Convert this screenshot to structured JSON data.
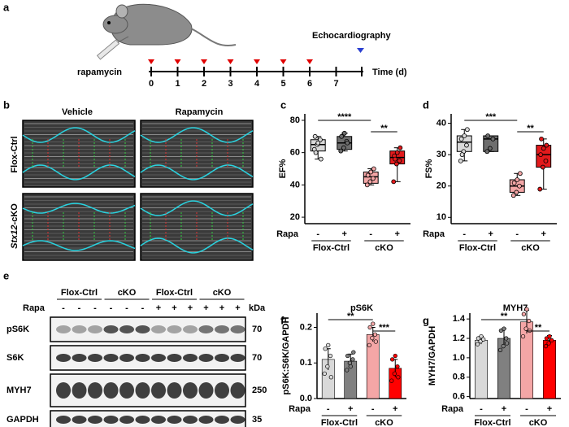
{
  "panel_labels": [
    "a",
    "b",
    "c",
    "d",
    "e",
    "f",
    "g"
  ],
  "timeline": {
    "drug": "rapamycin",
    "days": [
      "0",
      "1",
      "2",
      "3",
      "4",
      "5",
      "6",
      "7"
    ],
    "axis_label": "Time (d)",
    "event": "Echocardiography"
  },
  "echo": {
    "columns": [
      "Vehicle",
      "Rapamycin"
    ],
    "row1": "Flox-Ctrl",
    "row2_gene": "Stx12",
    "row2_suffix": "-cKO"
  },
  "blot": {
    "groups": [
      "Flox-Ctrl",
      "cKO",
      "Flox-Ctrl",
      "cKO"
    ],
    "treatment": "Rapa",
    "signs": [
      "-",
      "-",
      "-",
      "-",
      "-",
      "-",
      "+",
      "+",
      "+",
      "+",
      "+",
      "+"
    ],
    "unit": "kDa",
    "proteins": [
      {
        "name": "pS6K",
        "kda": 70
      },
      {
        "name": "S6K",
        "kda": 70
      },
      {
        "name": "MYH7",
        "kda": 250
      },
      {
        "name": "GAPDH",
        "kda": 35
      }
    ]
  },
  "chart_data": [
    {
      "type": "box",
      "ylabel": "EF%",
      "ylim": [
        16,
        84
      ],
      "yticks": [
        20,
        40,
        60,
        80
      ],
      "treatment": "Rapa",
      "treatment_levels": [
        "-",
        "+",
        "-",
        "+"
      ],
      "groups": [
        "Flox-Ctrl",
        "cKO"
      ],
      "significance": [
        "****",
        "**"
      ],
      "boxes": [
        {
          "color": "#d9d9d9",
          "min": 56,
          "q1": 61,
          "median": 65,
          "q3": 68,
          "max": 70,
          "points": [
            62,
            65,
            68,
            70,
            66,
            56,
            60
          ]
        },
        {
          "color": "#6e6e6e",
          "min": 61,
          "q1": 62,
          "median": 66,
          "q3": 70,
          "max": 72,
          "points": [
            61,
            63,
            67,
            70,
            72,
            66
          ]
        },
        {
          "color": "#f4a6a6",
          "min": 40,
          "q1": 41,
          "median": 45,
          "q3": 48,
          "max": 50,
          "points": [
            40,
            42,
            44,
            46,
            48,
            50
          ]
        },
        {
          "color": "#e31a1c",
          "min": 42,
          "q1": 53,
          "median": 57,
          "q3": 61,
          "max": 63,
          "points": [
            42,
            53,
            55,
            58,
            60,
            63,
            56
          ]
        }
      ]
    },
    {
      "type": "box",
      "ylabel": "FS%",
      "ylim": [
        8,
        43
      ],
      "yticks": [
        10,
        20,
        30,
        40
      ],
      "treatment": "Rapa",
      "treatment_levels": [
        "-",
        "+",
        "-",
        "+"
      ],
      "groups": [
        "Flox-Ctrl",
        "cKO"
      ],
      "significance": [
        "***",
        "**"
      ],
      "boxes": [
        {
          "color": "#d9d9d9",
          "min": 28,
          "q1": 31,
          "median": 34,
          "q3": 36,
          "max": 38,
          "points": [
            28,
            31,
            33,
            35,
            36,
            38,
            30
          ]
        },
        {
          "color": "#6e6e6e",
          "min": 31,
          "q1": 31,
          "median": 35,
          "q3": 36,
          "max": 36,
          "points": [
            31,
            32,
            35,
            36
          ]
        },
        {
          "color": "#f4a6a6",
          "min": 17,
          "q1": 18,
          "median": 20,
          "q3": 22,
          "max": 24,
          "points": [
            17,
            18,
            20,
            21,
            22,
            24
          ]
        },
        {
          "color": "#e31a1c",
          "min": 19,
          "q1": 26,
          "median": 30,
          "q3": 33,
          "max": 35,
          "points": [
            19,
            26,
            28,
            30,
            32,
            33,
            35
          ]
        }
      ]
    },
    {
      "type": "bar",
      "title": "pS6K",
      "ylabel": "pS6K:S6K/GAPDH",
      "ylim": [
        0,
        0.24
      ],
      "yticks": [
        {
          "value": 0,
          "label": "0.0"
        },
        0.1,
        0.2
      ],
      "treatment": "Rapa",
      "treatment_levels": [
        "-",
        "+",
        "-",
        "+"
      ],
      "groups": [
        "Flox-Ctrl",
        "cKO"
      ],
      "significance": [
        "**",
        "***"
      ],
      "colors": [
        "#d9d9d9",
        "#808080",
        "#f4a6a6",
        "#ff0000"
      ],
      "values": [
        0.11,
        0.105,
        0.18,
        0.085
      ],
      "errors": [
        0.03,
        0.02,
        0.02,
        0.025
      ],
      "points": [
        [
          0.07,
          0.09,
          0.12,
          0.14,
          0.15,
          0.06
        ],
        [
          0.08,
          0.1,
          0.11,
          0.12,
          0.09,
          0.13
        ],
        [
          0.15,
          0.17,
          0.18,
          0.2,
          0.21,
          0.16
        ],
        [
          0.05,
          0.07,
          0.09,
          0.11,
          0.12,
          0.06
        ]
      ]
    },
    {
      "type": "bar",
      "title": "MYH7",
      "ylabel": "MYH7/GAPDH",
      "ylim": [
        0.58,
        1.46
      ],
      "yticks": [
        0.6,
        0.8,
        {
          "value": 1,
          "label": "1.0"
        },
        1.2,
        1.4
      ],
      "treatment": "Rapa",
      "treatment_levels": [
        "-",
        "+",
        "-",
        "+"
      ],
      "groups": [
        "Flox-Ctrl",
        "cKO"
      ],
      "significance": [
        "**",
        "**"
      ],
      "colors": [
        "#d9d9d9",
        "#808080",
        "#f4a6a6",
        "#ff0000"
      ],
      "values": [
        1.18,
        1.2,
        1.37,
        1.18
      ],
      "errors": [
        0.04,
        0.1,
        0.12,
        0.05
      ],
      "points": [
        [
          1.14,
          1.17,
          1.19,
          1.2,
          1.22
        ],
        [
          1.08,
          1.12,
          1.2,
          1.28,
          1.3,
          1.15
        ],
        [
          1.22,
          1.3,
          1.38,
          1.45,
          1.5,
          1.28
        ],
        [
          1.12,
          1.15,
          1.18,
          1.2,
          1.22
        ]
      ]
    }
  ]
}
